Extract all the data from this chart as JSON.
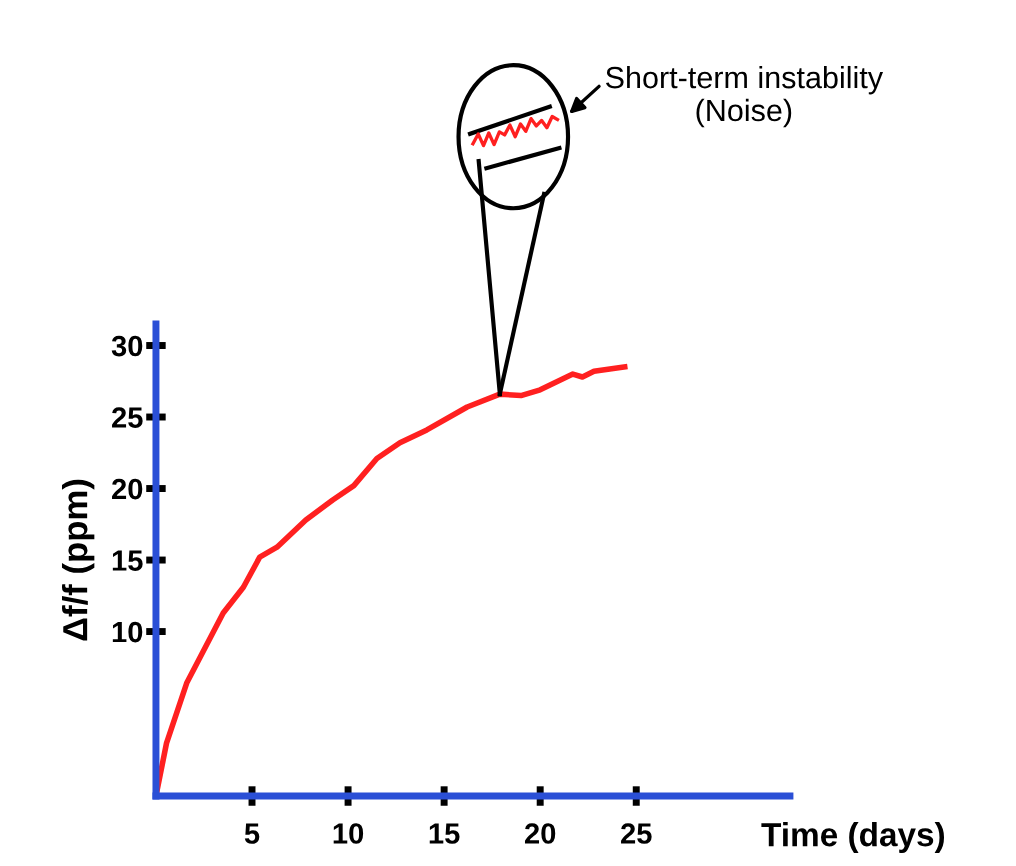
{
  "chart_data": {
    "type": "line",
    "xlabel": "Time (days)",
    "ylabel": "Δf/f (ppm)",
    "x": [
      0,
      0.55,
      1.6,
      3.5,
      4.55,
      5.4,
      6.3,
      7.8,
      9.2,
      10.3,
      11.5,
      12.7,
      14.1,
      16.2,
      17.9,
      19.0,
      20.0,
      21.7,
      22.2,
      22.8,
      24.4
    ],
    "series": [
      {
        "color": "#ff2020",
        "values": [
          -1.5,
          2.2,
          6.4,
          11.3,
          13.1,
          15.2,
          15.9,
          17.8,
          19.2,
          20.2,
          22.1,
          23.2,
          24.1,
          25.7,
          26.6,
          26.5,
          26.9,
          28.0,
          27.8,
          28.2,
          28.5
        ]
      }
    ],
    "xlim": [
      0,
      33
    ],
    "ylim": [
      -1.5,
      31.5
    ],
    "xticks": [
      5,
      10,
      15,
      20,
      25
    ],
    "yticks": [
      10,
      15,
      20,
      25,
      30
    ],
    "grid": false,
    "legend": false,
    "marker": "none",
    "line_style": "solid",
    "annotations": [
      "Short-term instability\n(Noise)"
    ]
  }
}
